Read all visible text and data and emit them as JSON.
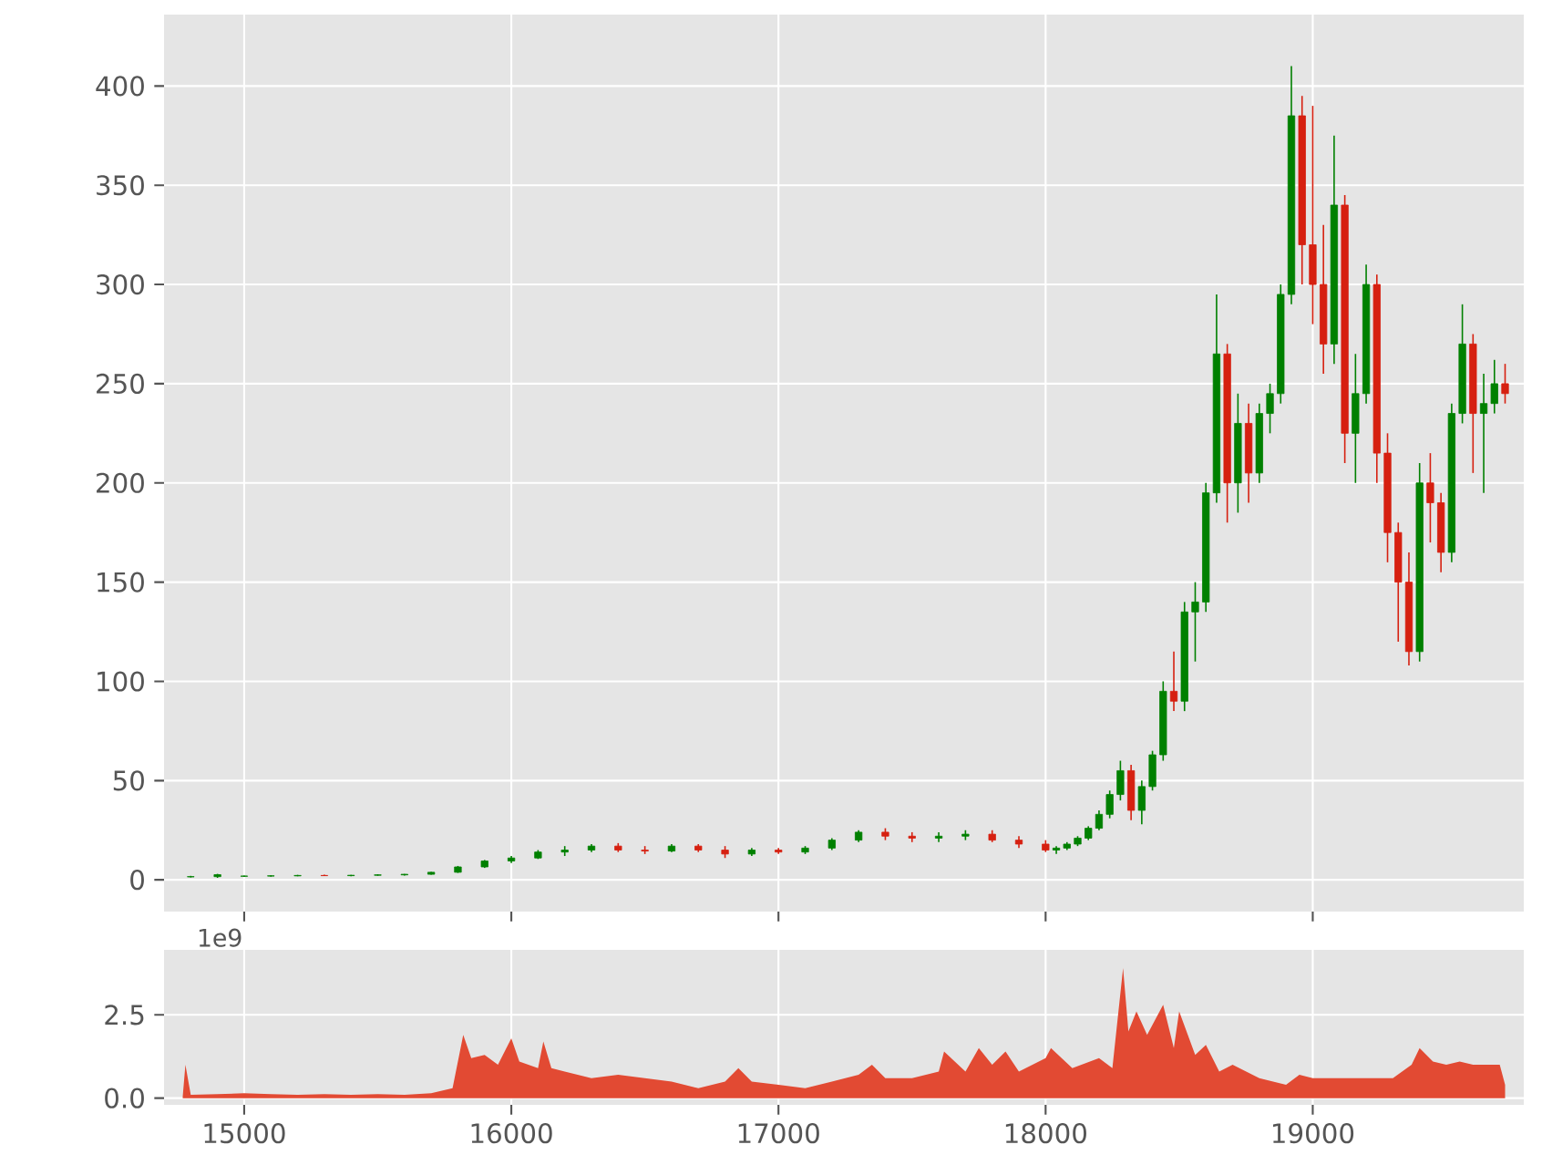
{
  "chart_data": [
    {
      "type": "candlestick",
      "grid": true,
      "tick_labels": "y",
      "xlim": [
        14700,
        19790
      ],
      "ylim": [
        -16,
        436
      ],
      "xticks": [
        {
          "value": 15000,
          "label": null
        },
        {
          "value": 16000,
          "label": null
        },
        {
          "value": 17000,
          "label": null
        },
        {
          "value": 18000,
          "label": null
        },
        {
          "value": 19000,
          "label": null
        }
      ],
      "yticks": [
        0,
        50,
        100,
        150,
        200,
        250,
        300,
        350,
        400
      ],
      "x": [
        14800,
        14900,
        15000,
        15100,
        15200,
        15300,
        15400,
        15500,
        15600,
        15700,
        15800,
        15900,
        16000,
        16100,
        16200,
        16300,
        16400,
        16500,
        16600,
        16700,
        16800,
        16900,
        17000,
        17100,
        17200,
        17300,
        17400,
        17500,
        17600,
        17700,
        17800,
        17900,
        18000,
        18040,
        18080,
        18120,
        18160,
        18200,
        18240,
        18280,
        18320,
        18360,
        18400,
        18440,
        18480,
        18520,
        18560,
        18600,
        18640,
        18680,
        18720,
        18760,
        18800,
        18840,
        18880,
        18920,
        18960,
        19000,
        19040,
        19080,
        19120,
        19160,
        19200,
        19240,
        19280,
        19320,
        19360,
        19400,
        19440,
        19480,
        19520,
        19560,
        19600,
        19640,
        19680,
        19720
      ],
      "ohlc": [
        [
          1.5,
          2,
          1.2,
          1.6
        ],
        [
          1.6,
          3,
          1.0,
          2.6
        ],
        [
          1.8,
          2.2,
          1.5,
          1.9
        ],
        [
          1.9,
          2.3,
          1.6,
          2.0
        ],
        [
          2,
          2.5,
          1.8,
          2.2
        ],
        [
          2.2,
          2.6,
          1.9,
          2.1
        ],
        [
          2.1,
          2.5,
          1.8,
          2.3
        ],
        [
          2.3,
          2.8,
          2.1,
          2.5
        ],
        [
          2.5,
          3,
          2.2,
          2.8
        ],
        [
          2.8,
          4,
          2.6,
          3.8
        ],
        [
          3.8,
          7,
          3.5,
          6.5
        ],
        [
          6.5,
          10,
          6,
          9.5
        ],
        [
          9.5,
          12,
          8.5,
          11
        ],
        [
          11,
          15,
          10.5,
          14
        ],
        [
          14,
          17,
          12,
          15
        ],
        [
          15,
          18,
          14,
          17
        ],
        [
          17,
          18.5,
          14,
          15
        ],
        [
          15,
          17,
          13,
          14.5
        ],
        [
          14.5,
          18,
          14,
          17
        ],
        [
          17,
          18,
          14,
          15
        ],
        [
          15,
          17,
          11,
          13
        ],
        [
          13,
          16,
          12,
          15
        ],
        [
          15,
          16,
          13,
          14
        ],
        [
          14,
          17,
          13,
          16
        ],
        [
          16,
          21,
          15,
          20
        ],
        [
          20,
          25,
          19,
          24
        ],
        [
          24,
          26,
          20,
          22
        ],
        [
          22,
          24,
          19,
          21
        ],
        [
          21,
          24,
          19,
          22
        ],
        [
          22,
          25,
          20,
          23
        ],
        [
          23,
          25,
          19,
          20
        ],
        [
          20,
          22,
          16,
          18
        ],
        [
          18,
          20,
          14,
          15
        ],
        [
          15,
          17,
          13,
          16
        ],
        [
          16,
          19,
          15,
          18
        ],
        [
          18,
          22,
          17,
          21
        ],
        [
          21,
          27,
          20,
          26
        ],
        [
          26,
          35,
          25,
          33
        ],
        [
          33,
          45,
          31,
          43
        ],
        [
          43,
          60,
          40,
          55
        ],
        [
          55,
          58,
          30,
          35
        ],
        [
          35,
          50,
          28,
          47
        ],
        [
          47,
          65,
          45,
          63
        ],
        [
          63,
          100,
          60,
          95
        ],
        [
          95,
          115,
          85,
          90
        ],
        [
          90,
          140,
          85,
          135
        ],
        [
          135,
          150,
          110,
          140
        ],
        [
          140,
          200,
          135,
          195
        ],
        [
          195,
          295,
          190,
          265
        ],
        [
          265,
          270,
          180,
          200
        ],
        [
          200,
          245,
          185,
          230
        ],
        [
          230,
          240,
          190,
          205
        ],
        [
          205,
          240,
          200,
          235
        ],
        [
          235,
          250,
          225,
          245
        ],
        [
          245,
          300,
          240,
          295
        ],
        [
          295,
          410,
          290,
          385
        ],
        [
          385,
          395,
          300,
          320
        ],
        [
          320,
          390,
          280,
          300
        ],
        [
          300,
          330,
          255,
          270
        ],
        [
          270,
          375,
          260,
          340
        ],
        [
          340,
          345,
          210,
          225
        ],
        [
          225,
          265,
          200,
          245
        ],
        [
          245,
          310,
          240,
          300
        ],
        [
          300,
          305,
          200,
          215
        ],
        [
          215,
          225,
          160,
          175
        ],
        [
          175,
          180,
          120,
          150
        ],
        [
          150,
          165,
          108,
          115
        ],
        [
          115,
          210,
          110,
          200
        ],
        [
          200,
          215,
          170,
          190
        ],
        [
          190,
          195,
          155,
          165
        ],
        [
          165,
          240,
          160,
          235
        ],
        [
          235,
          290,
          230,
          270
        ],
        [
          270,
          275,
          205,
          235
        ],
        [
          235,
          255,
          195,
          240
        ],
        [
          240,
          262,
          235,
          250
        ],
        [
          250,
          260,
          240,
          245
        ]
      ],
      "colors": [
        "#008000",
        "#008000",
        "#008000",
        "#008000",
        "#008000",
        "#d62010",
        "#008000",
        "#008000",
        "#008000",
        "#008000",
        "#008000",
        "#008000",
        "#008000",
        "#008000",
        "#008000",
        "#008000",
        "#d62010",
        "#d62010",
        "#008000",
        "#d62010",
        "#d62010",
        "#008000",
        "#d62010",
        "#008000",
        "#008000",
        "#008000",
        "#d62010",
        "#d62010",
        "#008000",
        "#008000",
        "#d62010",
        "#d62010",
        "#d62010",
        "#008000",
        "#008000",
        "#008000",
        "#008000",
        "#008000",
        "#008000",
        "#008000",
        "#d62010",
        "#008000",
        "#008000",
        "#008000",
        "#d62010",
        "#008000",
        "#008000",
        "#008000",
        "#008000",
        "#d62010",
        "#008000",
        "#d62010",
        "#008000",
        "#008000",
        "#008000",
        "#008000",
        "#d62010",
        "#d62010",
        "#d62010",
        "#008000",
        "#d62010",
        "#008000",
        "#008000",
        "#d62010",
        "#d62010",
        "#d62010",
        "#d62010",
        "#008000",
        "#d62010",
        "#d62010",
        "#008000",
        "#008000",
        "#d62010",
        "#008000",
        "#008000",
        "#d62010"
      ]
    },
    {
      "type": "area",
      "grid": true,
      "color": "#e24a33",
      "xlim": [
        14700,
        19790
      ],
      "ylim": [
        -0.2,
        4.45
      ],
      "xticks": [
        15000,
        16000,
        17000,
        18000,
        19000
      ],
      "yticks": [
        {
          "value": 0,
          "label": "0.0"
        },
        {
          "value": 2.5,
          "label": "2.5"
        }
      ],
      "annotations": [
        "1e9"
      ],
      "x": [
        14770,
        14780,
        14800,
        14900,
        15000,
        15100,
        15200,
        15300,
        15400,
        15500,
        15600,
        15700,
        15780,
        15820,
        15850,
        15900,
        15950,
        16000,
        16030,
        16100,
        16120,
        16150,
        16200,
        16300,
        16400,
        16500,
        16600,
        16700,
        16800,
        16850,
        16900,
        17000,
        17100,
        17200,
        17300,
        17350,
        17400,
        17500,
        17600,
        17620,
        17700,
        17750,
        17800,
        17850,
        17900,
        18000,
        18020,
        18100,
        18200,
        18250,
        18290,
        18310,
        18340,
        18380,
        18440,
        18480,
        18500,
        18560,
        18600,
        18650,
        18700,
        18800,
        18900,
        18950,
        19000,
        19100,
        19200,
        19300,
        19370,
        19400,
        19450,
        19500,
        19550,
        19600,
        19700,
        19720
      ],
      "values": [
        0.05,
        1.0,
        0.1,
        0.12,
        0.15,
        0.12,
        0.1,
        0.12,
        0.1,
        0.12,
        0.1,
        0.15,
        0.3,
        1.9,
        1.2,
        1.3,
        1.0,
        1.8,
        1.1,
        0.9,
        1.7,
        0.9,
        0.8,
        0.6,
        0.7,
        0.6,
        0.5,
        0.3,
        0.5,
        0.9,
        0.5,
        0.4,
        0.3,
        0.5,
        0.7,
        1.0,
        0.6,
        0.6,
        0.8,
        1.4,
        0.8,
        1.5,
        1.0,
        1.4,
        0.8,
        1.2,
        1.5,
        0.9,
        1.2,
        0.9,
        3.9,
        2.0,
        2.6,
        1.9,
        2.8,
        1.5,
        2.6,
        1.3,
        1.6,
        0.8,
        1.0,
        0.6,
        0.4,
        0.7,
        0.6,
        0.6,
        0.6,
        0.6,
        1.0,
        1.5,
        1.1,
        1.0,
        1.1,
        1.0,
        1.0,
        0.4
      ]
    }
  ]
}
